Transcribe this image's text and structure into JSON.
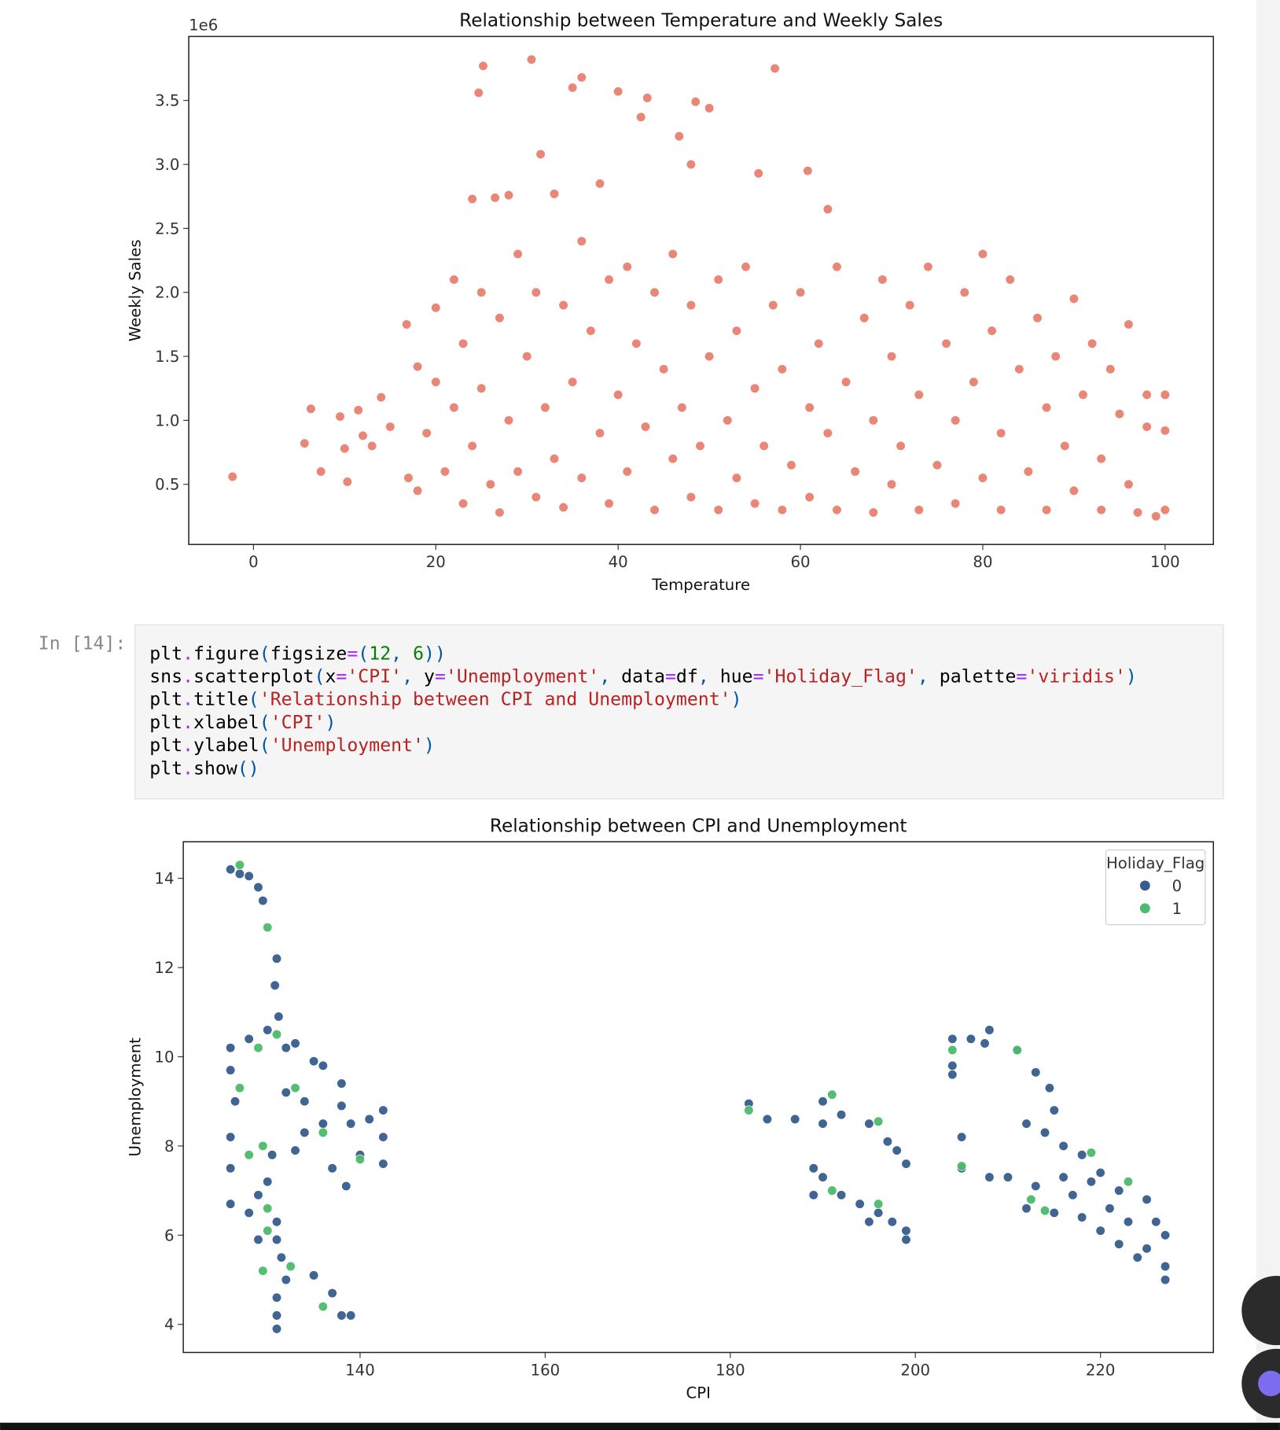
{
  "chart_data": [
    {
      "type": "scatter",
      "title": "Relationship between Temperature and Weekly Sales",
      "xlabel": "Temperature",
      "ylabel": "Weekly Sales",
      "offset_label": "1e6",
      "color": "#e8806e",
      "xlim": [
        -7.1,
        105.3
      ],
      "ylim": [
        0.03,
        4.0
      ],
      "xticks": [
        0,
        20,
        40,
        60,
        80,
        100
      ],
      "yticks": [
        0.5,
        {
          "value": 1,
          "label": "1.0"
        },
        1.5,
        {
          "value": 2,
          "label": "2.0"
        },
        2.5,
        {
          "value": 3,
          "label": "3.0"
        },
        3.5
      ],
      "x": [
        -2.3,
        5.6,
        6.3,
        7.4,
        9.5,
        10,
        10.3,
        11.5,
        12,
        13,
        14,
        15,
        16.8,
        17,
        18,
        20,
        22,
        24,
        24.7,
        25.2,
        30.5,
        31.5,
        35,
        36,
        40,
        42.5,
        43.2,
        48.5,
        50,
        46.7,
        48,
        57.2,
        60.8,
        55.4,
        63,
        38,
        33,
        28,
        26.5,
        18,
        19,
        20,
        21,
        22,
        23,
        23,
        24,
        25,
        25,
        26,
        27,
        27,
        28,
        29,
        29,
        30,
        31,
        31,
        32,
        33,
        34,
        34,
        35,
        36,
        36,
        37,
        38,
        39,
        39,
        40,
        41,
        41,
        42,
        43,
        44,
        44,
        45,
        46,
        46,
        47,
        48,
        48,
        49,
        50,
        51,
        51,
        52,
        53,
        53,
        54,
        55,
        55,
        56,
        57,
        58,
        58,
        59,
        60,
        61,
        61,
        62,
        63,
        64,
        64,
        65,
        66,
        67,
        68,
        68,
        69,
        70,
        70,
        71,
        72,
        73,
        73,
        74,
        75,
        76,
        77,
        77,
        78,
        79,
        80,
        80,
        81,
        82,
        82,
        83,
        84,
        85,
        86,
        87,
        87,
        88,
        89,
        90,
        90,
        91,
        92,
        93,
        93,
        94,
        95,
        96,
        96,
        97,
        98,
        98,
        99,
        100,
        100,
        100
      ],
      "values": [
        0.56,
        0.82,
        1.09,
        0.6,
        1.03,
        0.78,
        0.52,
        1.08,
        0.88,
        0.8,
        1.18,
        0.95,
        1.75,
        0.55,
        1.42,
        1.88,
        2.1,
        2.73,
        3.56,
        3.77,
        3.82,
        3.08,
        3.6,
        3.68,
        3.57,
        3.37,
        3.52,
        3.49,
        3.44,
        3.22,
        3.0,
        3.75,
        2.95,
        2.93,
        2.65,
        2.85,
        2.77,
        2.76,
        2.74,
        0.45,
        0.9,
        1.3,
        0.6,
        1.1,
        0.35,
        1.6,
        0.8,
        2.0,
        1.25,
        0.5,
        1.8,
        0.28,
        1.0,
        2.3,
        0.6,
        1.5,
        0.4,
        2.0,
        1.1,
        0.7,
        1.9,
        0.32,
        1.3,
        2.4,
        0.55,
        1.7,
        0.9,
        2.1,
        0.35,
        1.2,
        2.2,
        0.6,
        1.6,
        0.95,
        2.0,
        0.3,
        1.4,
        2.3,
        0.7,
        1.1,
        1.9,
        0.4,
        0.8,
        1.5,
        2.1,
        0.3,
        1.0,
        1.7,
        0.55,
        2.2,
        1.25,
        0.35,
        0.8,
        1.9,
        1.4,
        0.3,
        0.65,
        2.0,
        1.1,
        0.4,
        1.6,
        0.9,
        2.2,
        0.3,
        1.3,
        0.6,
        1.8,
        1.0,
        0.28,
        2.1,
        1.5,
        0.5,
        0.8,
        1.9,
        1.2,
        0.3,
        2.2,
        0.65,
        1.6,
        1.0,
        0.35,
        2.0,
        1.3,
        0.55,
        2.3,
        1.7,
        0.9,
        0.3,
        2.1,
        1.4,
        0.6,
        1.8,
        1.1,
        0.3,
        1.5,
        0.8,
        1.95,
        0.45,
        1.2,
        1.6,
        0.7,
        0.3,
        1.4,
        1.05,
        1.75,
        0.5,
        0.28,
        0.95,
        1.2,
        0.25,
        0.3,
        0.92,
        1.2
      ]
    },
    {
      "type": "scatter",
      "title": "Relationship between CPI and Unemployment",
      "xlabel": "CPI",
      "ylabel": "Unemployment",
      "legend_title": "Holiday_Flag",
      "legend": "upper right",
      "xlim": [
        120.9,
        232.2
      ],
      "ylim": [
        3.37,
        14.82
      ],
      "xticks": [
        140,
        160,
        180,
        200,
        220
      ],
      "yticks": [
        4,
        6,
        8,
        10,
        12,
        14
      ],
      "series": [
        {
          "name": "0",
          "color": "#365d8d",
          "x": [
            126,
            127,
            128,
            129,
            129.5,
            131,
            130.8,
            131.2,
            130,
            128,
            126,
            126,
            126.5,
            126,
            126,
            126,
            128,
            129,
            130,
            131,
            131,
            131.5,
            132,
            131,
            131,
            131,
            129,
            130.5,
            132,
            133,
            135,
            136,
            138,
            138,
            139,
            141,
            142.5,
            142.5,
            142.5,
            140,
            137,
            138.5,
            136,
            134,
            133,
            132,
            134,
            135,
            137,
            139,
            138,
            182,
            184,
            187,
            190,
            192,
            195,
            197,
            198,
            199,
            189,
            190,
            189,
            192,
            194,
            196,
            197.5,
            199,
            199,
            195,
            190,
            204,
            206,
            208,
            207.5,
            211,
            213,
            214.5,
            215,
            204,
            204,
            205,
            205,
            208,
            212,
            214,
            216,
            218,
            220,
            222,
            225,
            226,
            227,
            227,
            227,
            224,
            222,
            220,
            218,
            215,
            212,
            213,
            216,
            219,
            221,
            223,
            225,
            210,
            217
          ],
          "values": [
            14.2,
            14.1,
            14.05,
            13.8,
            13.5,
            12.2,
            11.6,
            10.9,
            10.6,
            10.4,
            10.2,
            9.7,
            9,
            8.2,
            7.5,
            6.7,
            6.5,
            6.9,
            7.2,
            6.3,
            5.9,
            5.5,
            5,
            4.6,
            4.2,
            3.9,
            5.9,
            7.8,
            10.2,
            10.3,
            9.9,
            9.8,
            9.4,
            8.9,
            8.5,
            8.6,
            8.8,
            8.2,
            7.6,
            7.8,
            7.5,
            7.1,
            8.5,
            8.3,
            7.9,
            9.2,
            9.0,
            5.1,
            4.7,
            4.2,
            4.2,
            8.95,
            8.6,
            8.6,
            8.5,
            8.7,
            8.5,
            8.1,
            7.9,
            7.6,
            7.5,
            7.3,
            6.9,
            6.9,
            6.7,
            6.5,
            6.3,
            6.1,
            5.9,
            6.3,
            9.0,
            10.4,
            10.4,
            10.6,
            10.3,
            10.15,
            9.65,
            9.3,
            8.8,
            9.6,
            9.8,
            8.2,
            7.5,
            7.3,
            8.5,
            8.3,
            8.0,
            7.8,
            7.4,
            7.0,
            6.8,
            6.3,
            6.0,
            5.3,
            5.0,
            5.5,
            5.8,
            6.1,
            6.4,
            6.5,
            6.6,
            7.1,
            7.3,
            7.2,
            6.6,
            6.3,
            5.7,
            7.3,
            6.9
          ]
        },
        {
          "name": "1",
          "color": "#4bbb6c",
          "x": [
            127,
            130,
            131,
            129,
            127,
            128,
            129.5,
            130,
            130,
            129.5,
            132.5,
            136,
            133,
            136,
            140,
            182,
            191,
            191,
            196,
            196,
            204,
            205,
            211,
            219,
            223,
            214,
            212.5
          ],
          "values": [
            14.3,
            12.9,
            10.5,
            10.2,
            9.3,
            7.8,
            8.0,
            6.6,
            6.1,
            5.2,
            5.3,
            4.4,
            9.3,
            8.3,
            7.7,
            8.8,
            9.15,
            7.0,
            8.55,
            6.7,
            10.15,
            7.55,
            10.15,
            7.85,
            7.2,
            6.55,
            6.8
          ]
        }
      ]
    }
  ],
  "cell": {
    "prompt": "In [14]:",
    "lines": [
      [
        "plt",
        ".",
        "figure",
        "(",
        "figsize",
        "=",
        "(",
        "12",
        ",",
        " ",
        "6",
        ")",
        ")"
      ],
      [
        "sns",
        ".",
        "scatterplot",
        "(",
        "x",
        "=",
        "'CPI'",
        ",",
        " y",
        "=",
        "'Unemployment'",
        ",",
        " data",
        "=",
        "df",
        ",",
        " hue",
        "=",
        "'Holiday_Flag'",
        ",",
        " palette",
        "=",
        "'viridis'",
        ")"
      ],
      [
        "plt",
        ".",
        "title",
        "(",
        "'Relationship between CPI and Unemployment'",
        ")"
      ],
      [
        "plt",
        ".",
        "xlabel",
        "(",
        "'CPI'",
        ")"
      ],
      [
        "plt",
        ".",
        "ylabel",
        "(",
        "'Unemployment'",
        ")"
      ],
      [
        "plt",
        ".",
        "show",
        "(",
        ")"
      ]
    ]
  }
}
